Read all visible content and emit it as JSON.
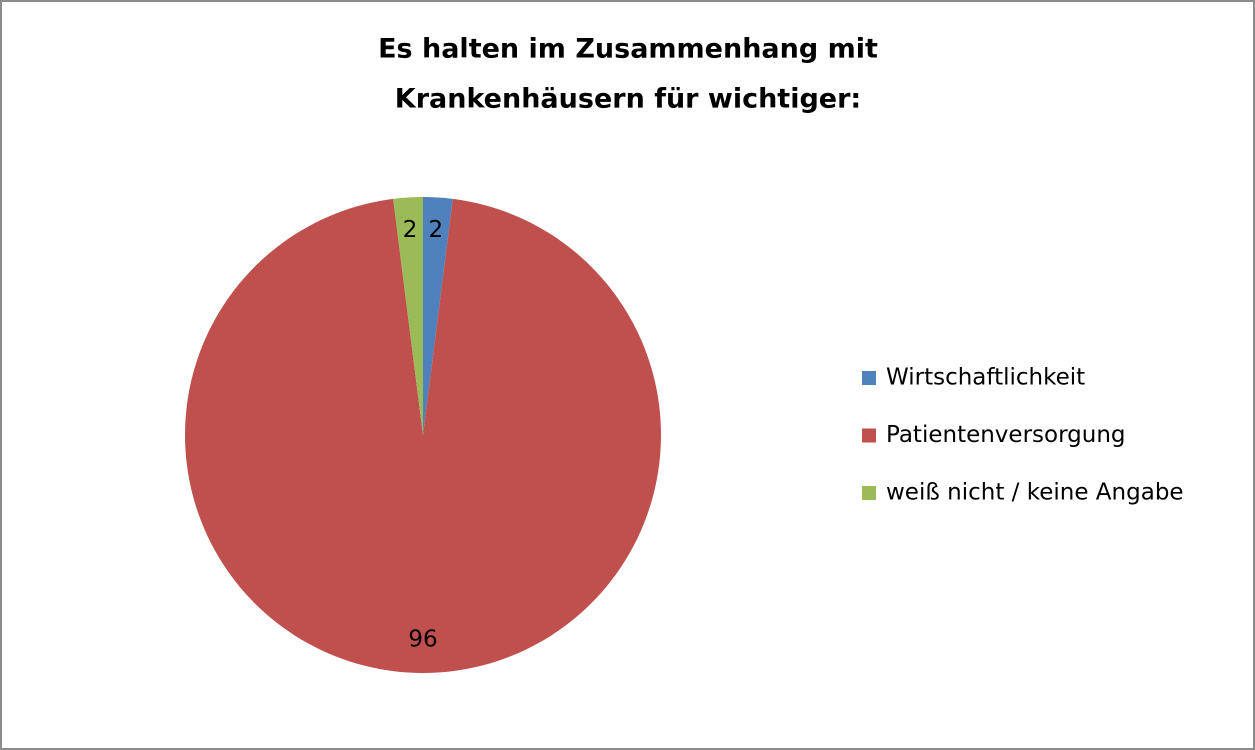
{
  "chart_data": {
    "type": "pie",
    "title": [
      "Es halten im Zusammenhang mit",
      "Krankenhäusern für wichtiger:"
    ],
    "categories": [
      "Wirtschaftlichkeit",
      "Patientenversorgung",
      "weiß nicht / keine Angabe"
    ],
    "values": [
      2,
      96,
      2
    ],
    "colors": [
      "#4f81bd",
      "#c0504d",
      "#9bbb59"
    ],
    "legend": "right"
  }
}
